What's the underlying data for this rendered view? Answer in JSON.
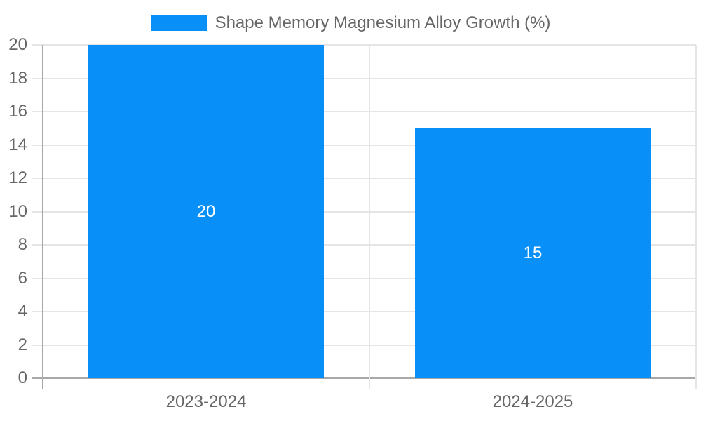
{
  "chart_data": {
    "type": "bar",
    "title": "",
    "legend": {
      "position": "top",
      "label": "Shape Memory Magnesium Alloy Growth (%)"
    },
    "categories": [
      "2023-2024",
      "2024-2025"
    ],
    "series": [
      {
        "name": "Shape Memory Magnesium Alloy Growth (%)",
        "values": [
          20,
          15
        ]
      }
    ],
    "data_labels": [
      "20",
      "15"
    ],
    "xlabel": "",
    "ylabel": "",
    "ylim": [
      0,
      20
    ],
    "yticks": [
      0,
      2,
      4,
      6,
      8,
      10,
      12,
      14,
      16,
      18,
      20
    ],
    "grid": true,
    "colors": {
      "bar": "#0990F8",
      "tick_text": "#666666",
      "gridline": "#E5E5E5",
      "axis_line": "#A8A8A8",
      "value_label": "#FFFFFF",
      "background": "#FFFFFF"
    }
  }
}
